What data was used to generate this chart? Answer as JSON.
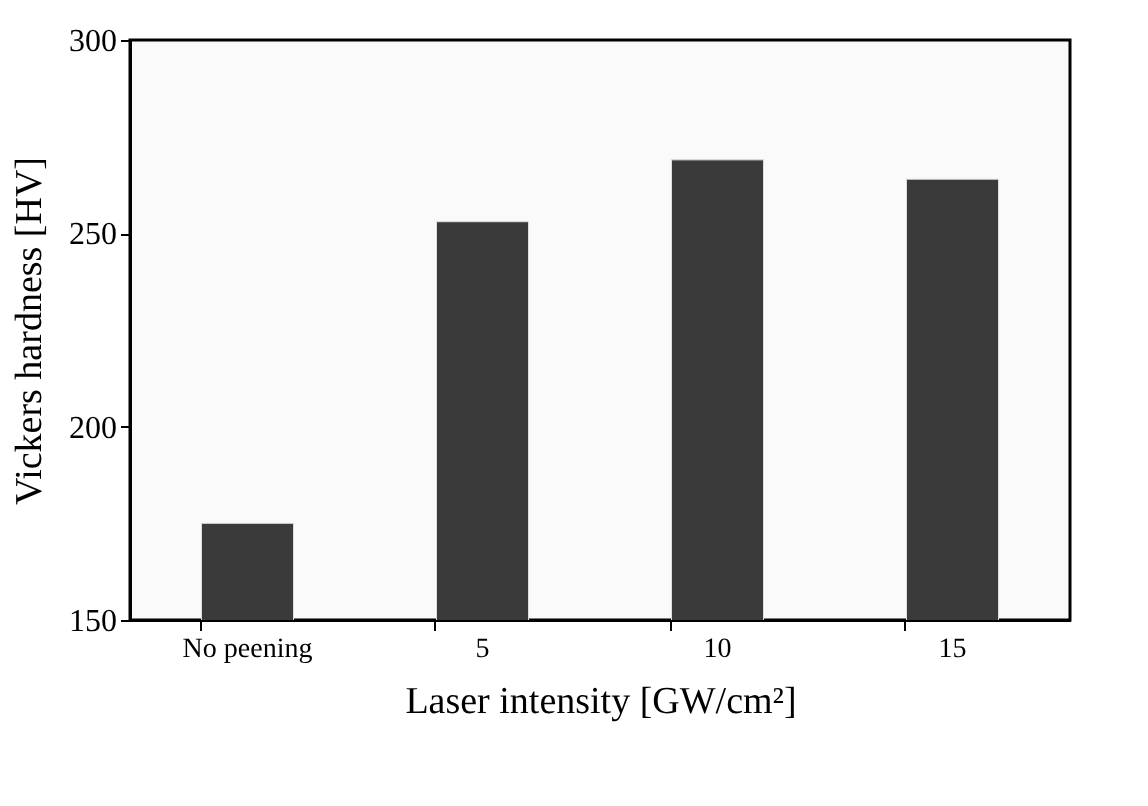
{
  "chart_data": {
    "type": "bar",
    "xlabel": "Laser intensity [GW/cm²]",
    "ylabel": "Vickers hardness [HV]",
    "categories": [
      "No peening",
      "5",
      "10",
      "15"
    ],
    "values": [
      175,
      253,
      269,
      264
    ],
    "color": "#3a3a3a",
    "ylim": [
      150,
      300
    ],
    "yticks": [
      150,
      200,
      250,
      300
    ],
    "grid": false
  }
}
